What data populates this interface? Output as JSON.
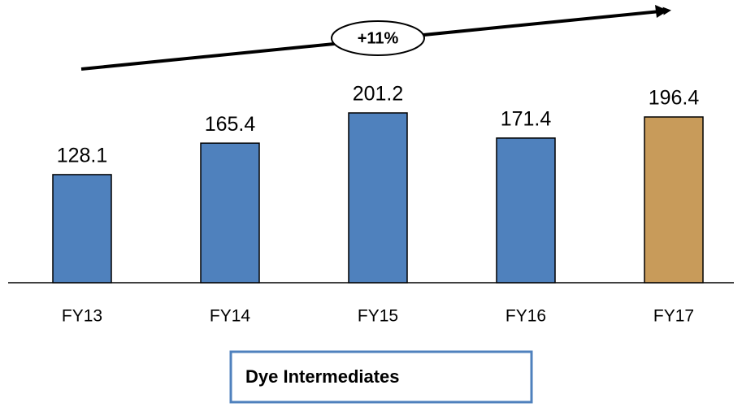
{
  "chart_data": {
    "type": "bar",
    "title": "Dye Intermediates",
    "annotation": "+11%",
    "categories": [
      "FY13",
      "FY14",
      "FY15",
      "FY16",
      "FY17"
    ],
    "values": [
      128.1,
      165.4,
      201.2,
      171.4,
      196.4
    ],
    "colors": [
      "#4f81bd",
      "#4f81bd",
      "#4f81bd",
      "#4f81bd",
      "#c89b5a"
    ]
  }
}
